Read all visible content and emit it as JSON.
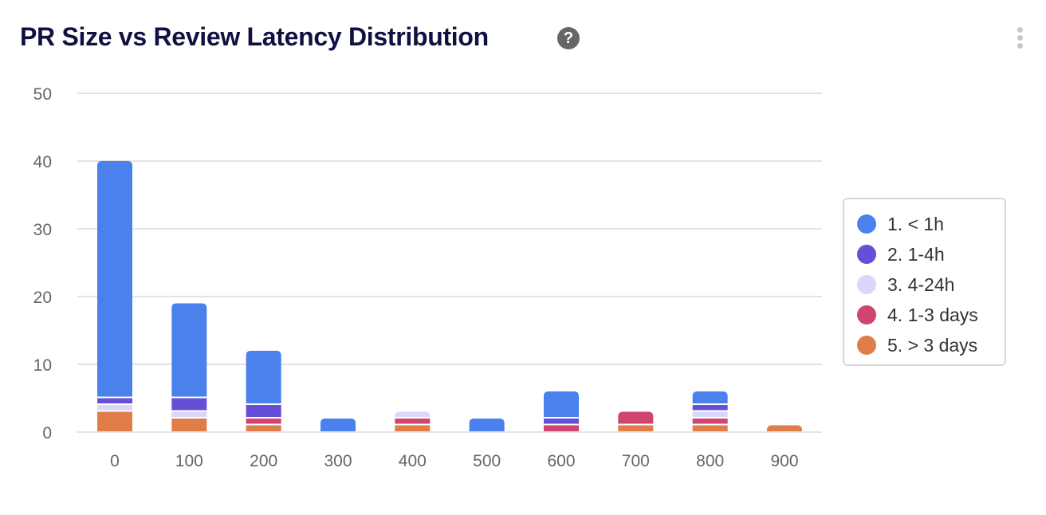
{
  "header": {
    "title": "PR Size vs Review Latency Distribution",
    "help_icon": "question-circle-icon",
    "menu_icon": "more-vertical-icon"
  },
  "chart_data": {
    "type": "bar",
    "stacked": true,
    "categories": [
      "0",
      "100",
      "200",
      "300",
      "400",
      "500",
      "600",
      "700",
      "800",
      "900"
    ],
    "ylim": [
      0,
      50
    ],
    "yticks": [
      "0",
      "10",
      "20",
      "30",
      "40",
      "50"
    ],
    "grid": true,
    "legend_position": "right",
    "series": [
      {
        "name": "1. < 1h",
        "color": "#4a81ec",
        "values": [
          35,
          14,
          8,
          2,
          0,
          2,
          4,
          0,
          2,
          0
        ]
      },
      {
        "name": "2. 1-4h",
        "color": "#654fd6",
        "values": [
          1,
          2,
          2,
          0,
          0,
          0,
          1,
          0,
          1,
          0
        ]
      },
      {
        "name": "3. 4-24h",
        "color": "#d9d7fa",
        "values": [
          1,
          1,
          0,
          0,
          1,
          0,
          0,
          0,
          1,
          0
        ]
      },
      {
        "name": "4. 1-3 days",
        "color": "#cf4570",
        "values": [
          0,
          0,
          1,
          0,
          1,
          0,
          1,
          2,
          1,
          0
        ]
      },
      {
        "name": "5. > 3 days",
        "color": "#df7e48",
        "values": [
          3,
          2,
          1,
          0,
          1,
          0,
          0,
          1,
          1,
          1
        ]
      }
    ]
  }
}
